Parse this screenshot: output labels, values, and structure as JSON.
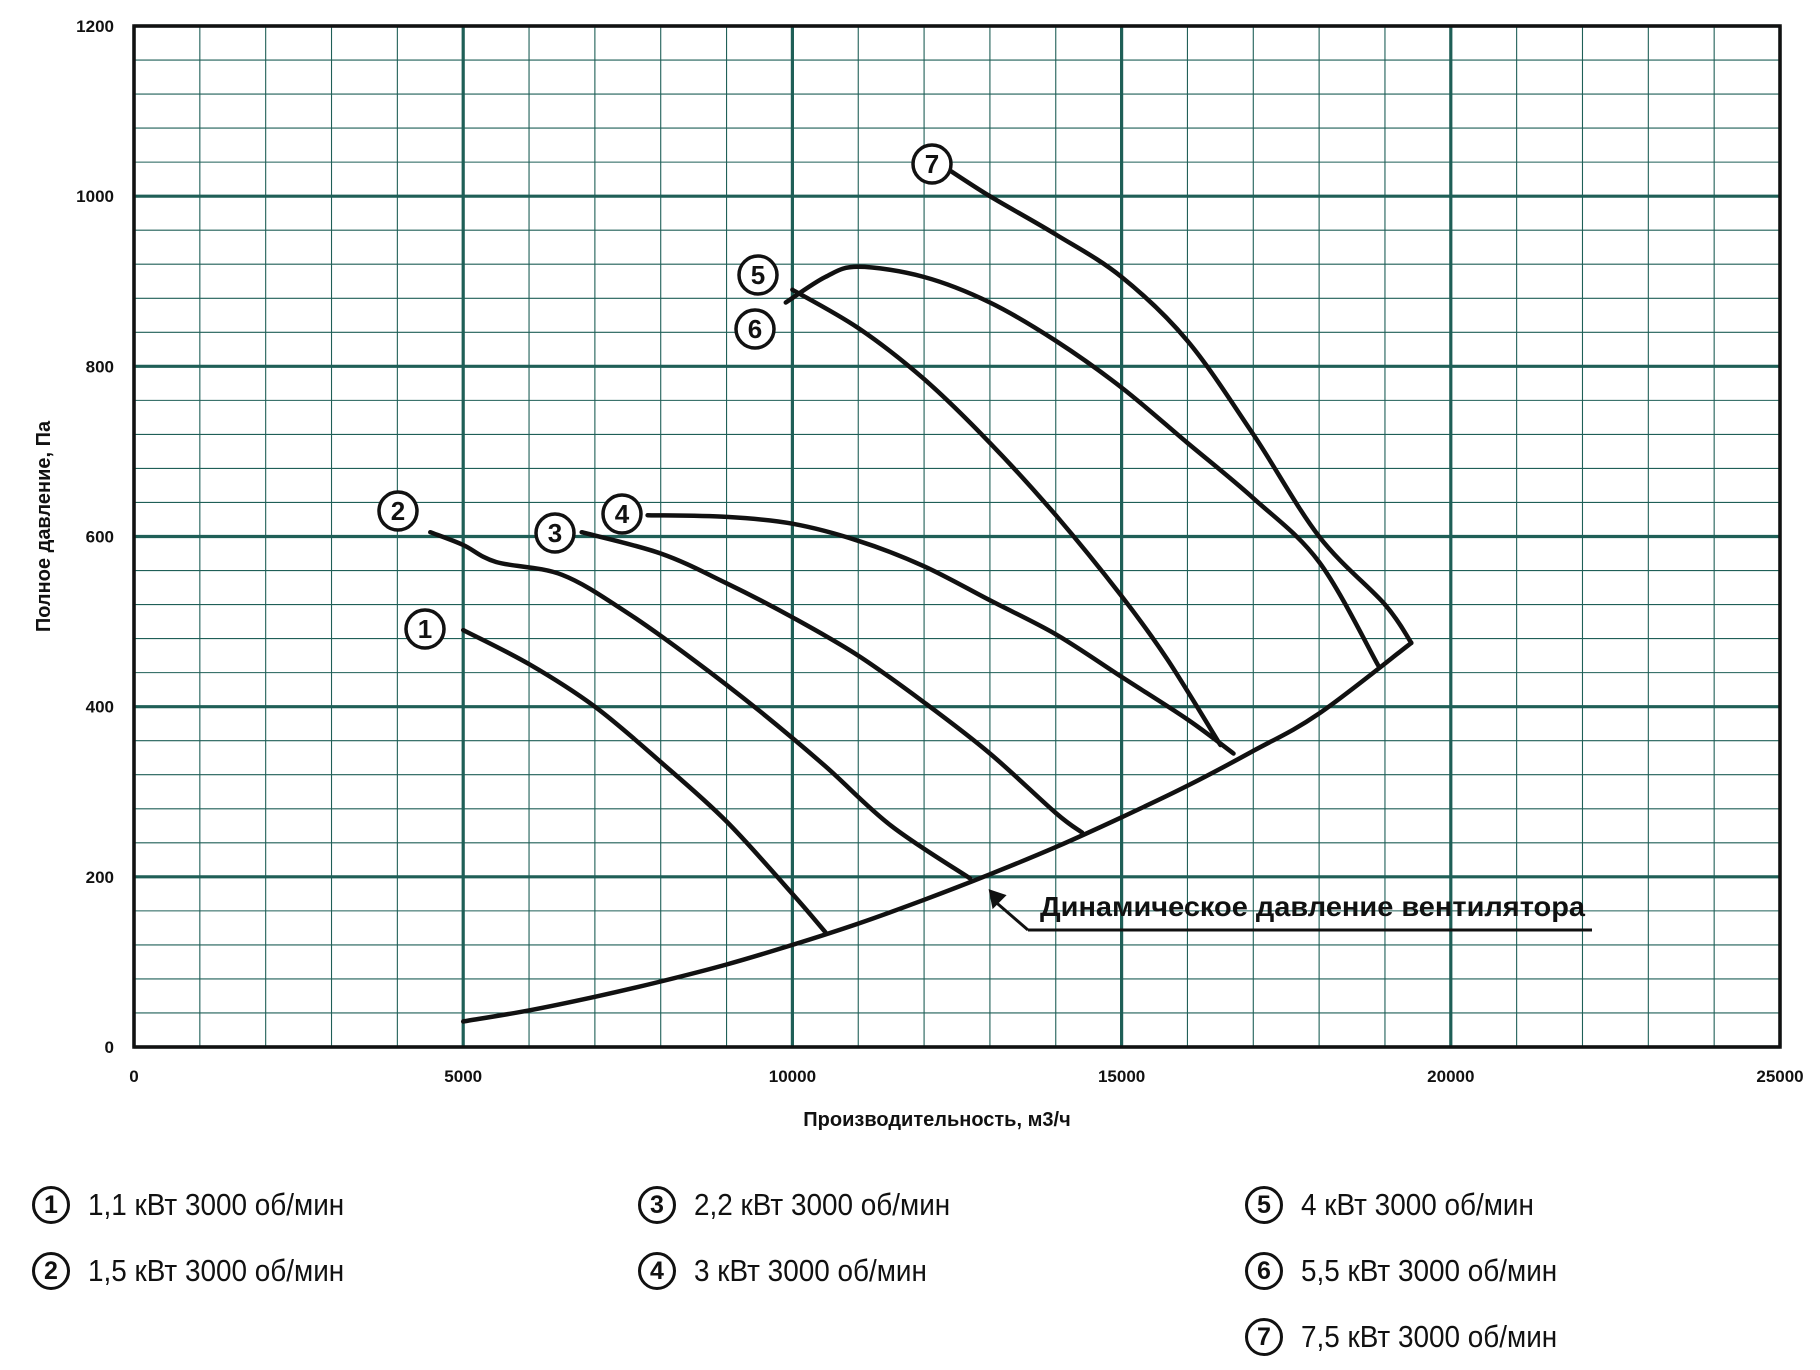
{
  "chart_data": {
    "type": "line",
    "title": "",
    "xlabel": "Производительность, м3/ч",
    "ylabel": "Полное давление, Па",
    "xlim": [
      0,
      25000
    ],
    "ylim": [
      0,
      1200
    ],
    "x_ticks": [
      0,
      5000,
      10000,
      15000,
      20000,
      25000
    ],
    "y_ticks": [
      0,
      200,
      400,
      600,
      800,
      1000,
      1200
    ],
    "x_tick_labels": [
      "0",
      "5000",
      "10000",
      "15000",
      "20000",
      "25000"
    ],
    "y_tick_labels": [
      "0",
      "200",
      "400",
      "600",
      "800",
      "1000",
      "1200"
    ],
    "x_minor_step": 1000,
    "y_minor_step": 40,
    "grid": true,
    "series": [
      {
        "name": "1",
        "x": [
          5000,
          6000,
          7000,
          8000,
          9000,
          10000,
          10500
        ],
        "y": [
          490,
          450,
          400,
          335,
          265,
          180,
          135
        ]
      },
      {
        "name": "2",
        "x": [
          4500,
          5000,
          5500,
          6500,
          7500,
          8500,
          9500,
          10500,
          11500,
          12700
        ],
        "y": [
          605,
          590,
          570,
          555,
          510,
          455,
          395,
          330,
          260,
          198
        ]
      },
      {
        "name": "3",
        "x": [
          6800,
          8000,
          9000,
          10000,
          11000,
          12000,
          13000,
          14000,
          14400
        ],
        "y": [
          605,
          580,
          545,
          505,
          460,
          405,
          345,
          275,
          252
        ]
      },
      {
        "name": "4",
        "x": [
          7800,
          9000,
          10000,
          11000,
          12000,
          13000,
          14000,
          15000,
          16000,
          16700
        ],
        "y": [
          625,
          623,
          615,
          595,
          565,
          525,
          485,
          435,
          385,
          345
        ]
      },
      {
        "name": "5",
        "x": [
          10000,
          11000,
          12000,
          13000,
          14000,
          15000,
          15700,
          16500
        ],
        "y": [
          890,
          845,
          785,
          710,
          625,
          530,
          455,
          355
        ]
      },
      {
        "name": "6",
        "x": [
          9900,
          10500,
          11000,
          12000,
          13000,
          14000,
          15000,
          16000,
          17000,
          18000,
          18900
        ],
        "y": [
          875,
          905,
          917,
          905,
          875,
          830,
          775,
          710,
          645,
          570,
          448
        ]
      },
      {
        "name": "7",
        "x": [
          12300,
          13000,
          14000,
          15000,
          16000,
          17000,
          18000,
          19000,
          19400
        ],
        "y": [
          1035,
          1000,
          955,
          905,
          830,
          720,
          600,
          520,
          475
        ]
      }
    ],
    "system_curve": {
      "name": "Динамическое давление вентилятора",
      "x": [
        5000,
        6000,
        7000,
        8000,
        9000,
        10000,
        11000,
        12000,
        13000,
        14000,
        15000,
        16000,
        17000,
        18000,
        19400
      ],
      "y": [
        30,
        43,
        59,
        77,
        97,
        120,
        145,
        173,
        203,
        235,
        270,
        307,
        348,
        392,
        475
      ]
    },
    "annotations": [
      {
        "text": "Динамическое давление вентилятора",
        "arrow_to": [
          12980,
          195
        ]
      }
    ]
  },
  "legend": {
    "items": [
      {
        "num": "1",
        "label": "1,1 кВт 3000 об/мин"
      },
      {
        "num": "2",
        "label": "1,5 кВт 3000 об/мин"
      },
      {
        "num": "3",
        "label": "2,2 кВт 3000 об/мин"
      },
      {
        "num": "4",
        "label": "3 кВт 3000 об/мин"
      },
      {
        "num": "5",
        "label": "4 кВт 3000 об/мин"
      },
      {
        "num": "6",
        "label": "5,5 кВт 3000 об/мин"
      },
      {
        "num": "7",
        "label": "7,5 кВт 3000 об/мин"
      }
    ]
  },
  "colors": {
    "grid": "#1f5f57",
    "line": "#111111",
    "background": "#ffffff"
  }
}
